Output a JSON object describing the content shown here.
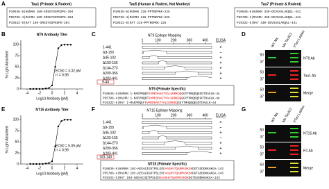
{
  "figure": {
    "panel_labels": [
      "A",
      "B",
      "C",
      "D",
      "E",
      "F",
      "G"
    ],
    "tau_boxes": [
      {
        "title": "Tau1 (Primate & Rodent)",
        "rows": [
          "P10636-8|HUMAN 189-SRSGYSSPGSPG-204",
          "P55786-4|MACMU 189-SRSGYSSPGSPG-204",
          "P19332-5|RAT   189-SRSGYSSPGSPG-204"
        ]
      },
      {
        "title": "Tau5 (Human & Rodent, Not Monkey)",
        "rows": [
          "P10636-8|HUMAN 218-PPTREPKK-225",
          "P55786-4|MACMU 218-PPTREPKK-225",
          "P19332-5|RAT   218-PPTREPKK-225"
        ]
      },
      {
        "title": "Tau7 (Primate & Rodent)",
        "rows": [
          "P10636-8|HUMAN 430-GEVSASLAKQGL-441",
          "P55786-4|MACMU 430-GEVSASLAKQGL-441",
          "P19332-5|RAT   430-GEVSASLAKQGL-441"
        ]
      }
    ],
    "maps": [
      {
        "title": "NT9 Epitope Mapping",
        "ruler": [
          1,
          100,
          200,
          300,
          400
        ],
        "elisa_label": "ELISA",
        "constructs": [
          {
            "label": "1-441",
            "elisa": "+"
          },
          {
            "label": "Δ9-155",
            "deleted": [
              9,
              155
            ],
            "elisa": "−"
          },
          {
            "label": "Δ45-102",
            "deleted": [
              45,
              102
            ],
            "elisa": "+"
          },
          {
            "label": "Δ103-155",
            "deleted": [
              103,
              155
            ],
            "elisa": "+"
          },
          {
            "label": "Δ144-273",
            "deleted": [
              144,
              273
            ],
            "elisa": "+"
          },
          {
            "label": "Δ209-356",
            "deleted": [
              209,
              356
            ],
            "elisa": "+"
          },
          {
            "label": "Δ283-441",
            "deleted": [
              283,
              441
            ],
            "elisa": "+"
          }
        ],
        "epitope_box": "9-44",
        "sequence": {
          "title": "NT9 (Primate Specific)",
          "highlight": 1,
          "rows": [
            {
              "segments": [
                "P10636-8|HUMAN 1-MAEPRQEF",
                "EVMEDHAGTYGLGDRKDQ",
                "GGYTMHQDQEGDTDAGLK-44"
              ]
            },
            {
              "segments": [
                "P55786-4|MACMU 1-MAEPRQEF",
                "DVMEDHAGTYGLGDRKDQ",
                "GGYTMHQDQEGDTDAGLK-44"
              ]
            },
            {
              "segments": [
                "P19332-5|RAT   1-MAEPRQEF",
                "DVMEDHAGTYGLGDRKDQ",
                "GGYTMHQDQEGDTDAGLK-44"
              ]
            }
          ]
        }
      },
      {
        "title": "NT15 Epitope Mapping",
        "ruler": [
          1,
          100,
          200,
          300,
          400
        ],
        "elisa_label": "ELISA",
        "constructs": [
          {
            "label": "1-441",
            "elisa": "+"
          },
          {
            "label": "Δ9-155",
            "deleted": [
              9,
              155
            ],
            "elisa": "−"
          },
          {
            "label": "Δ45-102",
            "deleted": [
              45,
              102
            ],
            "elisa": "+"
          },
          {
            "label": "Δ103-155",
            "deleted": [
              103,
              155
            ],
            "elisa": "−"
          },
          {
            "label": "Δ144-273",
            "deleted": [
              144,
              273
            ],
            "elisa": "+"
          },
          {
            "label": "Δ209-356",
            "deleted": [
              209,
              356
            ],
            "elisa": "+"
          },
          {
            "label": "Δ283-441",
            "deleted": [
              283,
              441
            ],
            "elisa": "+"
          }
        ],
        "epitope_box": "103-143",
        "sequence": {
          "title": "NT15 (Primate Specific)",
          "highlight": 1,
          "rows": [
            {
              "segments": [
                "P10636-8|HUMAN 103-AEEAGIGDTPSLED",
                "EAAGHVTQARMVSKSK",
                "DGTGSDDKKAKGA-143"
              ]
            },
            {
              "segments": [
                "P55786-4|MACMU 103-AEEAGIGDTPSLED",
                "EAAGHVTQARMVSKSK",
                "DGTGSDDKKAKGA-143"
              ]
            },
            {
              "segments": [
                "P19332-5|RAT   103-AEEAGIGDTPSLED",
                "EAAGHVTQARMVSKSK",
                "DGTGSDDKKAKGA-143"
              ]
            }
          ]
        }
      }
    ],
    "blots": [
      {
        "lanes": [
          "WT Ms",
          "Ms TauKO",
          "hTau Ladder"
        ],
        "markers": [
          50,
          37
        ],
        "panels": [
          "NT9 Ab",
          "Tau1 Ab",
          "Merge"
        ]
      },
      {
        "lanes": [
          "WT Ms",
          "Ms TauKO",
          "hTau Ladder"
        ],
        "markers": [
          50,
          37
        ],
        "panels": [
          "NT15 Ab",
          "R1 Ab",
          "Merge"
        ]
      }
    ]
  },
  "chart_data": [
    {
      "type": "scatter",
      "title": "NT9 Antibody Titer",
      "y_label": "% Light Absorbed",
      "x_label": "Log10 Antibody [pM]",
      "annotations": [
        "EC50 = 3.32 pM",
        "r² = 0.99"
      ],
      "color": "#000000",
      "x": [
        -3.5,
        -3,
        -2.5,
        -2,
        -1.5,
        -1,
        -0.5,
        0,
        0.5,
        1,
        1.5,
        2,
        2.5,
        3
      ],
      "values": [
        0,
        0,
        0,
        0,
        0,
        1,
        2,
        8,
        50,
        92,
        99,
        100,
        100,
        100
      ],
      "xlim": [
        -5,
        5
      ],
      "xticks": [
        -4,
        -2,
        0,
        2,
        4
      ],
      "ylim": [
        0,
        110
      ],
      "yticks": [
        0,
        25,
        50,
        75,
        100
      ]
    },
    {
      "type": "scatter",
      "title": "NT15 Antibody Titer",
      "y_label": "% Light Absorbed",
      "x_label": "Log10 Antibody [pM]",
      "annotations": [
        "EC50 = 5.09 pM",
        "r² = 0.99"
      ],
      "color": "#000000",
      "x": [
        -3.5,
        -3,
        -2.5,
        -2,
        -1.5,
        -1,
        -0.5,
        0,
        0.5,
        1,
        1.5,
        2,
        2.5,
        3
      ],
      "values": [
        0,
        0,
        0,
        0,
        0,
        1,
        2,
        6,
        40,
        85,
        97,
        100,
        100,
        100
      ],
      "xlim": [
        -5,
        5
      ],
      "xticks": [
        -4,
        -2,
        0,
        2,
        4
      ],
      "ylim": [
        0,
        110
      ],
      "yticks": [
        0,
        25,
        50,
        75,
        100
      ]
    }
  ]
}
